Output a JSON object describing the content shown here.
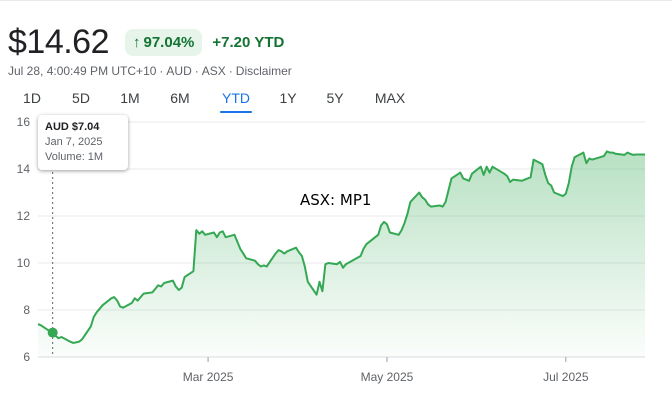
{
  "quote": {
    "price": "$14.62",
    "change_percent": "97.04%",
    "change_arrow": "↑",
    "change_value": "+7.20",
    "change_period": "YTD",
    "timestamp": "Jul 28, 4:00:49 PM UTC+10",
    "currency": "AUD",
    "exchange": "ASX",
    "disclaimer": "Disclaimer",
    "separator": "·"
  },
  "range_tabs": [
    {
      "label": "1D",
      "active": false
    },
    {
      "label": "5D",
      "active": false
    },
    {
      "label": "1M",
      "active": false
    },
    {
      "label": "6M",
      "active": false
    },
    {
      "label": "YTD",
      "active": true
    },
    {
      "label": "1Y",
      "active": false
    },
    {
      "label": "5Y",
      "active": false
    },
    {
      "label": "MAX",
      "active": false
    }
  ],
  "tooltip": {
    "currency": "AUD",
    "value": "$7.04",
    "date": "Jan 7, 2025",
    "volume": "Volume: 1M"
  },
  "colors": {
    "line": "#34a853",
    "fill": "#34a853",
    "positive_text": "#137333",
    "positive_bg": "#e6f4ea",
    "active_tab": "#1a73e8",
    "grid": "#e8eaed"
  },
  "chart_data": {
    "type": "area",
    "annotation": "ASX: MP1",
    "xlabel": "",
    "ylabel": "",
    "ylim": [
      6,
      16.3
    ],
    "xlim": [
      "2025-01-02",
      "2025-07-28"
    ],
    "y_ticks": [
      6,
      8,
      10,
      12,
      14,
      16
    ],
    "x_ticks": [
      {
        "date": "2025-03-01",
        "label": "Mar 2025"
      },
      {
        "date": "2025-05-01",
        "label": "May 2025"
      },
      {
        "date": "2025-07-01",
        "label": "Jul 2025"
      }
    ],
    "grid": "horizontal",
    "marker": {
      "date": "2025-01-07",
      "value": 7.04
    },
    "series": [
      {
        "values": [
          [
            "2025-01-02",
            7.4
          ],
          [
            "2025-01-03",
            7.35
          ],
          [
            "2025-01-06",
            7.1
          ],
          [
            "2025-01-07",
            7.04
          ],
          [
            "2025-01-08",
            6.9
          ],
          [
            "2025-01-09",
            6.8
          ],
          [
            "2025-01-10",
            6.85
          ],
          [
            "2025-01-13",
            6.65
          ],
          [
            "2025-01-14",
            6.6
          ],
          [
            "2025-01-15",
            6.62
          ],
          [
            "2025-01-16",
            6.65
          ],
          [
            "2025-01-17",
            6.75
          ],
          [
            "2025-01-20",
            7.3
          ],
          [
            "2025-01-21",
            7.7
          ],
          [
            "2025-01-22",
            7.9
          ],
          [
            "2025-01-23",
            8.05
          ],
          [
            "2025-01-24",
            8.2
          ],
          [
            "2025-01-27",
            8.5
          ],
          [
            "2025-01-28",
            8.55
          ],
          [
            "2025-01-29",
            8.4
          ],
          [
            "2025-01-30",
            8.15
          ],
          [
            "2025-01-31",
            8.1
          ],
          [
            "2025-02-03",
            8.3
          ],
          [
            "2025-02-04",
            8.5
          ],
          [
            "2025-02-05",
            8.4
          ],
          [
            "2025-02-06",
            8.55
          ],
          [
            "2025-02-07",
            8.7
          ],
          [
            "2025-02-10",
            8.75
          ],
          [
            "2025-02-11",
            8.9
          ],
          [
            "2025-02-12",
            9.05
          ],
          [
            "2025-02-13",
            9.0
          ],
          [
            "2025-02-14",
            9.15
          ],
          [
            "2025-02-17",
            9.25
          ],
          [
            "2025-02-18",
            9.0
          ],
          [
            "2025-02-19",
            8.85
          ],
          [
            "2025-02-20",
            8.95
          ],
          [
            "2025-02-21",
            9.4
          ],
          [
            "2025-02-24",
            9.65
          ],
          [
            "2025-02-25",
            11.4
          ],
          [
            "2025-02-26",
            11.25
          ],
          [
            "2025-02-27",
            11.35
          ],
          [
            "2025-02-28",
            11.2
          ],
          [
            "2025-03-03",
            11.3
          ],
          [
            "2025-03-04",
            11.1
          ],
          [
            "2025-03-05",
            11.3
          ],
          [
            "2025-03-06",
            11.35
          ],
          [
            "2025-03-07",
            11.1
          ],
          [
            "2025-03-10",
            11.2
          ],
          [
            "2025-03-11",
            10.9
          ],
          [
            "2025-03-12",
            10.6
          ],
          [
            "2025-03-13",
            10.4
          ],
          [
            "2025-03-14",
            10.2
          ],
          [
            "2025-03-17",
            10.1
          ],
          [
            "2025-03-18",
            9.95
          ],
          [
            "2025-03-19",
            9.85
          ],
          [
            "2025-03-20",
            9.9
          ],
          [
            "2025-03-21",
            9.85
          ],
          [
            "2025-03-24",
            10.4
          ],
          [
            "2025-03-25",
            10.55
          ],
          [
            "2025-03-26",
            10.5
          ],
          [
            "2025-03-27",
            10.4
          ],
          [
            "2025-03-28",
            10.5
          ],
          [
            "2025-03-31",
            10.65
          ],
          [
            "2025-04-01",
            10.45
          ],
          [
            "2025-04-02",
            10.3
          ],
          [
            "2025-04-03",
            9.85
          ],
          [
            "2025-04-04",
            9.2
          ],
          [
            "2025-04-07",
            8.65
          ],
          [
            "2025-04-08",
            9.2
          ],
          [
            "2025-04-09",
            8.8
          ],
          [
            "2025-04-10",
            9.95
          ],
          [
            "2025-04-11",
            10.0
          ],
          [
            "2025-04-14",
            9.95
          ],
          [
            "2025-04-15",
            10.05
          ],
          [
            "2025-04-16",
            9.8
          ],
          [
            "2025-04-17",
            9.95
          ],
          [
            "2025-04-22",
            10.3
          ],
          [
            "2025-04-23",
            10.6
          ],
          [
            "2025-04-24",
            10.8
          ],
          [
            "2025-04-28",
            11.2
          ],
          [
            "2025-04-29",
            11.6
          ],
          [
            "2025-04-30",
            11.75
          ],
          [
            "2025-05-01",
            11.65
          ],
          [
            "2025-05-02",
            11.3
          ],
          [
            "2025-05-05",
            11.2
          ],
          [
            "2025-05-06",
            11.4
          ],
          [
            "2025-05-07",
            11.7
          ],
          [
            "2025-05-08",
            12.1
          ],
          [
            "2025-05-09",
            12.6
          ],
          [
            "2025-05-12",
            13.0
          ],
          [
            "2025-05-13",
            12.8
          ],
          [
            "2025-05-14",
            12.7
          ],
          [
            "2025-05-15",
            12.5
          ],
          [
            "2025-05-16",
            12.4
          ],
          [
            "2025-05-19",
            12.45
          ],
          [
            "2025-05-20",
            12.4
          ],
          [
            "2025-05-21",
            12.6
          ],
          [
            "2025-05-22",
            13.1
          ],
          [
            "2025-05-23",
            13.6
          ],
          [
            "2025-05-26",
            13.85
          ],
          [
            "2025-05-27",
            13.6
          ],
          [
            "2025-05-28",
            13.55
          ],
          [
            "2025-05-29",
            13.5
          ],
          [
            "2025-05-30",
            13.8
          ],
          [
            "2025-06-02",
            14.1
          ],
          [
            "2025-06-03",
            13.75
          ],
          [
            "2025-06-04",
            14.1
          ],
          [
            "2025-06-05",
            13.85
          ],
          [
            "2025-06-06",
            14.1
          ],
          [
            "2025-06-10",
            13.8
          ],
          [
            "2025-06-11",
            13.7
          ],
          [
            "2025-06-12",
            13.45
          ],
          [
            "2025-06-13",
            13.55
          ],
          [
            "2025-06-16",
            13.5
          ],
          [
            "2025-06-17",
            13.55
          ],
          [
            "2025-06-18",
            13.6
          ],
          [
            "2025-06-19",
            13.65
          ],
          [
            "2025-06-20",
            14.4
          ],
          [
            "2025-06-23",
            14.2
          ],
          [
            "2025-06-24",
            13.75
          ],
          [
            "2025-06-25",
            13.4
          ],
          [
            "2025-06-26",
            13.3
          ],
          [
            "2025-06-27",
            13.0
          ],
          [
            "2025-06-30",
            12.85
          ],
          [
            "2025-07-01",
            12.95
          ],
          [
            "2025-07-02",
            13.4
          ],
          [
            "2025-07-03",
            14.1
          ],
          [
            "2025-07-04",
            14.5
          ],
          [
            "2025-07-07",
            14.7
          ],
          [
            "2025-07-08",
            14.25
          ],
          [
            "2025-07-09",
            14.45
          ],
          [
            "2025-07-10",
            14.4
          ],
          [
            "2025-07-14",
            14.55
          ],
          [
            "2025-07-15",
            14.75
          ],
          [
            "2025-07-16",
            14.7
          ],
          [
            "2025-07-17",
            14.7
          ],
          [
            "2025-07-18",
            14.65
          ],
          [
            "2025-07-21",
            14.6
          ],
          [
            "2025-07-22",
            14.7
          ],
          [
            "2025-07-23",
            14.65
          ],
          [
            "2025-07-24",
            14.6
          ],
          [
            "2025-07-25",
            14.62
          ],
          [
            "2025-07-28",
            14.62
          ]
        ]
      }
    ]
  }
}
